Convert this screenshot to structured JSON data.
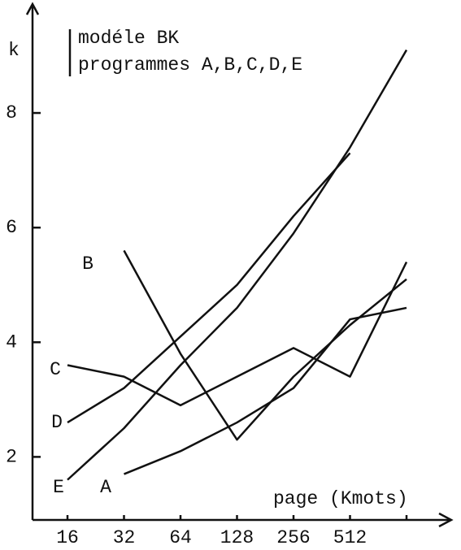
{
  "chart_data": {
    "type": "line",
    "legend_lines": [
      "modéle BK",
      "programmes A,B,C,D,E"
    ],
    "y_label": "k",
    "x_label": "page (Kmots)",
    "categories": [
      "16",
      "32",
      "64",
      "128",
      "256",
      "512",
      null
    ],
    "series": [
      {
        "name": "A",
        "color": "#111111",
        "values": [
          null,
          1.7,
          2.1,
          2.6,
          3.2,
          4.4,
          4.6
        ]
      },
      {
        "name": "B",
        "color": "#111111",
        "values": [
          null,
          5.6,
          3.8,
          2.3,
          3.4,
          4.3,
          5.1
        ]
      },
      {
        "name": "C",
        "color": "#111111",
        "values": [
          3.6,
          3.4,
          2.9,
          3.4,
          3.9,
          3.4,
          5.4
        ]
      },
      {
        "name": "D",
        "color": "#111111",
        "values": [
          2.6,
          3.2,
          4.1,
          5.0,
          6.2,
          7.3,
          null
        ]
      },
      {
        "name": "E",
        "color": "#111111",
        "values": [
          1.6,
          2.5,
          3.6,
          4.6,
          5.9,
          7.4,
          9.1
        ]
      }
    ],
    "ylim": [
      0.9,
      9.9
    ],
    "yticks": [
      2,
      4,
      6,
      8
    ],
    "grid": false
  }
}
